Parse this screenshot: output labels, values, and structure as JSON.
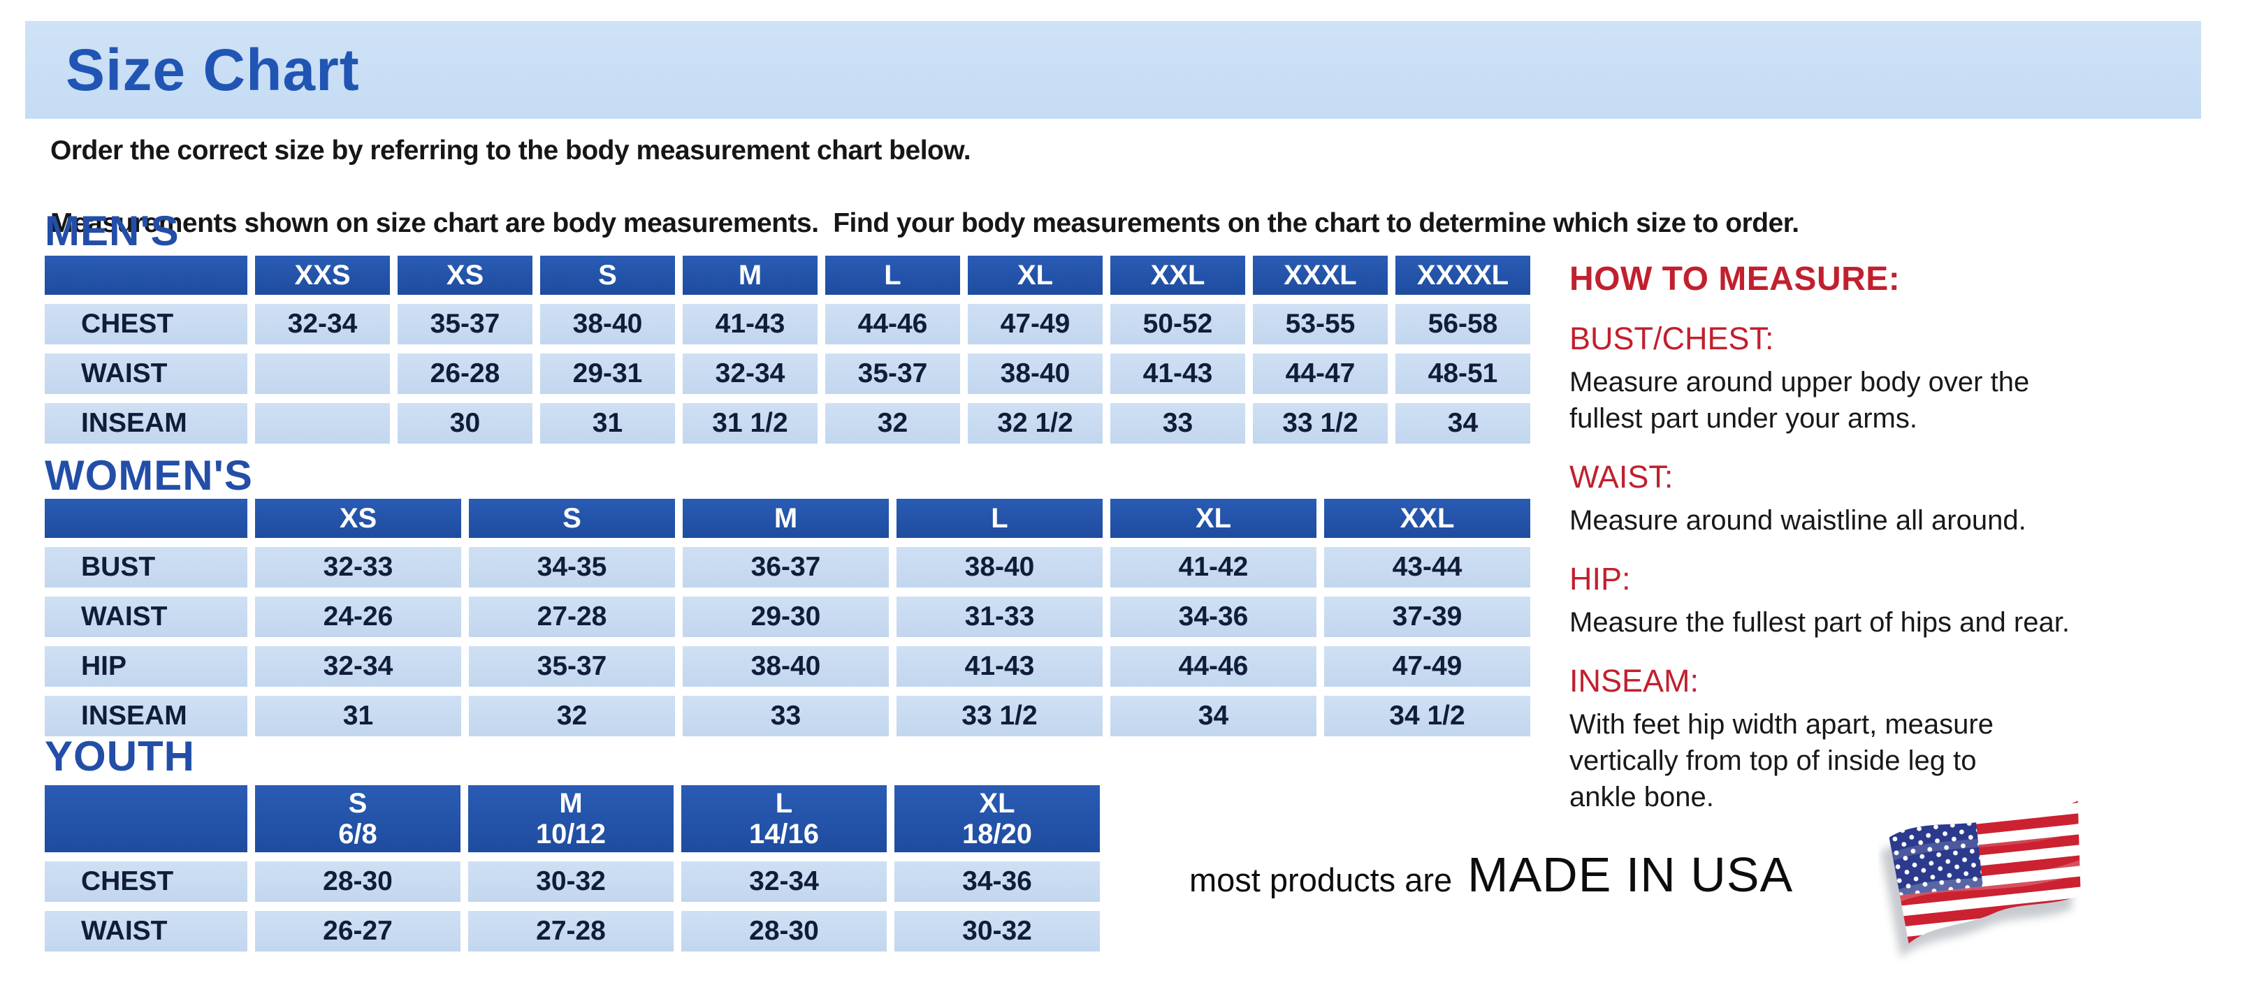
{
  "banner": {
    "title": "Size Chart",
    "background": "#c9def5",
    "title_color": "#2155b4"
  },
  "intro": {
    "line1": "Order the correct size by referring to the body measurement chart below.",
    "line2": "Measurements shown on size chart are body measurements.  Find your body measurements on the chart to determine which size to order."
  },
  "colors": {
    "header_blue": "#2152a8",
    "cell_light_blue": "#c6daf1",
    "section_heading_blue": "#234ea8",
    "red_heading": "#c1202e",
    "flag_red": "#cc2131",
    "flag_blue": "#2b3a8c"
  },
  "tables": {
    "mens": {
      "section": "MEN'S",
      "header": [
        "",
        "XXS",
        "XS",
        "S",
        "M",
        "L",
        "XL",
        "XXL",
        "XXXL",
        "XXXXL"
      ],
      "rows": [
        {
          "label": "CHEST",
          "values": [
            "32-34",
            "35-37",
            "38-40",
            "41-43",
            "44-46",
            "47-49",
            "50-52",
            "53-55",
            "56-58"
          ]
        },
        {
          "label": "WAIST",
          "values": [
            "",
            "26-28",
            "29-31",
            "32-34",
            "35-37",
            "38-40",
            "41-43",
            "44-47",
            "48-51"
          ]
        },
        {
          "label": "INSEAM",
          "values": [
            "",
            "30",
            "31",
            "31 1/2",
            "32",
            "32 1/2",
            "33",
            "33 1/2",
            "34"
          ]
        }
      ]
    },
    "womens": {
      "section": "WOMEN'S",
      "header": [
        "",
        "XS",
        "S",
        "M",
        "L",
        "XL",
        "XXL"
      ],
      "rows": [
        {
          "label": "BUST",
          "values": [
            "32-33",
            "34-35",
            "36-37",
            "38-40",
            "41-42",
            "43-44"
          ]
        },
        {
          "label": "WAIST",
          "values": [
            "24-26",
            "27-28",
            "29-30",
            "31-33",
            "34-36",
            "37-39"
          ]
        },
        {
          "label": "HIP",
          "values": [
            "32-34",
            "35-37",
            "38-40",
            "41-43",
            "44-46",
            "47-49"
          ]
        },
        {
          "label": "INSEAM",
          "values": [
            "31",
            "32",
            "33",
            "33 1/2",
            "34",
            "34 1/2"
          ]
        }
      ]
    },
    "youth": {
      "section": "YOUTH",
      "header": [
        "",
        "S\n6/8",
        "M\n10/12",
        "L\n14/16",
        "XL\n18/20"
      ],
      "rows": [
        {
          "label": "CHEST",
          "values": [
            "28-30",
            "30-32",
            "32-34",
            "34-36"
          ]
        },
        {
          "label": "WAIST",
          "values": [
            "26-27",
            "27-28",
            "28-30",
            "30-32"
          ]
        }
      ]
    }
  },
  "how_to_measure": {
    "title": "HOW TO MEASURE:",
    "items": [
      {
        "heading": "BUST/CHEST:",
        "text": "Measure around upper body over the\nfullest part under your arms."
      },
      {
        "heading": "WAIST:",
        "text": "Measure around waistline all around."
      },
      {
        "heading": "HIP:",
        "text": "Measure the fullest part of hips and rear."
      },
      {
        "heading": "INSEAM:",
        "text": "With feet hip width apart, measure\nvertically from top of inside leg to\nankle bone."
      }
    ]
  },
  "footer": {
    "prefix": "most products are",
    "emphasis": "MADE IN USA",
    "flag": "us-flag-icon"
  }
}
